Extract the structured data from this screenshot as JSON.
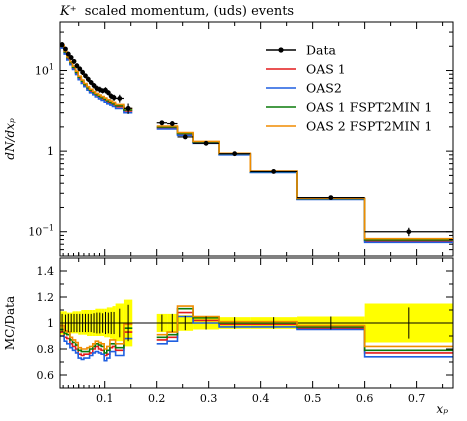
{
  "chart_data": [
    {
      "type": "line",
      "panel": "main",
      "title": "K⁺ scaled momentum, (uds) events",
      "title_italic_part": "K⁺",
      "title_rest": "scaled momentum, (uds) events",
      "ylabel": "dN/dxₚ",
      "log_y": true,
      "xlim": [
        0.014,
        0.77
      ],
      "ylim": [
        0.05,
        40
      ],
      "y_ticks": [
        {
          "v": 0.1,
          "base": "10",
          "exp": "−1"
        },
        {
          "v": 1,
          "base": "1",
          "exp": ""
        },
        {
          "v": 10,
          "base": "10",
          "exp": "1"
        }
      ],
      "bin_edges": [
        0.014,
        0.022,
        0.027,
        0.033,
        0.038,
        0.044,
        0.049,
        0.055,
        0.06,
        0.066,
        0.071,
        0.077,
        0.082,
        0.088,
        0.093,
        0.099,
        0.104,
        0.11,
        0.115,
        0.121,
        0.137,
        0.153,
        0.2,
        0.22,
        0.24,
        0.27,
        0.32,
        0.38,
        0.47,
        0.6,
        0.77
      ],
      "x_missing": [
        [
          0.153,
          0.2
        ]
      ],
      "data_points": [
        {
          "x": 0.018,
          "y": 21.0,
          "err": 1.5
        },
        {
          "x": 0.0245,
          "y": 18.5,
          "err": 1.2
        },
        {
          "x": 0.03,
          "y": 16.0,
          "err": 1.1
        },
        {
          "x": 0.0355,
          "y": 14.5,
          "err": 1.0
        },
        {
          "x": 0.041,
          "y": 13.0,
          "err": 0.9
        },
        {
          "x": 0.0465,
          "y": 11.5,
          "err": 0.8
        },
        {
          "x": 0.052,
          "y": 10.5,
          "err": 0.7
        },
        {
          "x": 0.0575,
          "y": 9.5,
          "err": 0.7
        },
        {
          "x": 0.063,
          "y": 8.6,
          "err": 0.6
        },
        {
          "x": 0.0685,
          "y": 7.8,
          "err": 0.6
        },
        {
          "x": 0.074,
          "y": 7.1,
          "err": 0.5
        },
        {
          "x": 0.0795,
          "y": 6.5,
          "err": 0.5
        },
        {
          "x": 0.085,
          "y": 6.0,
          "err": 0.5
        },
        {
          "x": 0.0905,
          "y": 5.8,
          "err": 0.5
        },
        {
          "x": 0.096,
          "y": 5.6,
          "err": 0.4
        },
        {
          "x": 0.1015,
          "y": 5.7,
          "err": 0.5
        },
        {
          "x": 0.107,
          "y": 5.3,
          "err": 0.4
        },
        {
          "x": 0.1125,
          "y": 4.8,
          "err": 0.4
        },
        {
          "x": 0.118,
          "y": 4.6,
          "err": 0.4
        },
        {
          "x": 0.129,
          "y": 4.5,
          "err": 0.5
        },
        {
          "x": 0.145,
          "y": 3.4,
          "err": 0.5
        },
        {
          "x": 0.21,
          "y": 2.25,
          "err": 0.15
        },
        {
          "x": 0.23,
          "y": 2.2,
          "err": 0.15
        },
        {
          "x": 0.255,
          "y": 1.5,
          "err": 0.08
        },
        {
          "x": 0.295,
          "y": 1.25,
          "err": 0.06
        },
        {
          "x": 0.35,
          "y": 0.93,
          "err": 0.04
        },
        {
          "x": 0.425,
          "y": 0.56,
          "err": 0.025
        },
        {
          "x": 0.535,
          "y": 0.265,
          "err": 0.013
        },
        {
          "x": 0.685,
          "y": 0.1,
          "err": 0.012
        }
      ],
      "series": [
        {
          "name": "Data",
          "color": "#000000",
          "style": "points-with-errors"
        },
        {
          "name": "OAS 1",
          "color": "#e41a1c",
          "values": [
            19.5,
            16.5,
            14.0,
            12.2,
            10.7,
            9.2,
            8.0,
            7.1,
            6.5,
            5.9,
            5.5,
            5.2,
            4.9,
            4.65,
            4.45,
            4.25,
            4.05,
            3.9,
            3.75,
            3.55,
            3.15,
            null,
            1.95,
            1.95,
            1.62,
            1.28,
            0.92,
            0.555,
            0.255,
            0.077
          ]
        },
        {
          "name": "OAS2",
          "color": "#1f5fe0",
          "values": [
            19.0,
            16.0,
            13.5,
            11.8,
            10.3,
            8.9,
            7.7,
            6.9,
            6.3,
            5.7,
            5.3,
            5.0,
            4.7,
            4.45,
            4.25,
            4.05,
            3.87,
            3.72,
            3.58,
            3.38,
            3.0,
            null,
            1.88,
            1.88,
            1.57,
            1.25,
            0.9,
            0.545,
            0.252,
            0.074
          ]
        },
        {
          "name": "OAS 1 FSPT2MIN 1",
          "color": "#0a7a0a",
          "values": [
            20.0,
            17.0,
            14.5,
            12.6,
            11.0,
            9.5,
            8.3,
            7.4,
            6.7,
            6.1,
            5.7,
            5.35,
            5.05,
            4.8,
            4.6,
            4.4,
            4.2,
            4.03,
            3.88,
            3.66,
            3.25,
            null,
            2.0,
            2.0,
            1.66,
            1.3,
            0.93,
            0.56,
            0.258,
            0.079
          ]
        },
        {
          "name": "OAS 2 FSPT2MIN 1",
          "color": "#f08c00",
          "values": [
            20.5,
            17.4,
            14.8,
            12.9,
            11.3,
            9.8,
            8.5,
            7.6,
            6.9,
            6.3,
            5.85,
            5.5,
            5.2,
            4.95,
            4.75,
            4.55,
            4.35,
            4.17,
            4.02,
            3.8,
            3.38,
            null,
            2.05,
            2.05,
            1.7,
            1.32,
            0.94,
            0.565,
            0.26,
            0.082
          ]
        }
      ],
      "legend_placement": "top-right"
    },
    {
      "type": "line",
      "panel": "ratio",
      "ylabel": "MC/Data",
      "xlabel": "xₚ",
      "ylim": [
        0.5,
        1.5
      ],
      "y_ticks": [
        "0.6",
        "0.8",
        "1",
        "1.2",
        "1.4"
      ],
      "x_ticks": [
        "0.1",
        "0.2",
        "0.3",
        "0.4",
        "0.5",
        "0.6",
        "0.7"
      ],
      "x_tick_values": [
        0.1,
        0.2,
        0.3,
        0.4,
        0.5,
        0.6,
        0.7
      ],
      "band_color": "#ffff00",
      "band": [
        [
          0.91,
          1.09
        ],
        [
          0.91,
          1.09
        ],
        [
          0.92,
          1.08
        ],
        [
          0.92,
          1.08
        ],
        [
          0.92,
          1.09
        ],
        [
          0.92,
          1.09
        ],
        [
          0.91,
          1.09
        ],
        [
          0.91,
          1.1
        ],
        [
          0.91,
          1.1
        ],
        [
          0.9,
          1.1
        ],
        [
          0.9,
          1.1
        ],
        [
          0.9,
          1.1
        ],
        [
          0.9,
          1.11
        ],
        [
          0.9,
          1.11
        ],
        [
          0.9,
          1.11
        ],
        [
          0.89,
          1.11
        ],
        [
          0.89,
          1.12
        ],
        [
          0.88,
          1.12
        ],
        [
          0.87,
          1.13
        ],
        [
          0.86,
          1.15
        ],
        [
          0.82,
          1.18
        ],
        null,
        [
          0.93,
          1.07
        ],
        [
          0.93,
          1.07
        ],
        [
          0.94,
          1.06
        ],
        [
          0.95,
          1.05
        ],
        [
          0.955,
          1.045
        ],
        [
          0.955,
          1.045
        ],
        [
          0.95,
          1.05
        ],
        [
          0.85,
          1.15
        ]
      ],
      "series": [
        {
          "name": "OAS 1",
          "color": "#e41a1c",
          "values": [
            0.93,
            0.89,
            0.88,
            0.84,
            0.82,
            0.8,
            0.76,
            0.75,
            0.76,
            0.76,
            0.77,
            0.8,
            0.82,
            0.8,
            0.79,
            0.75,
            0.76,
            0.81,
            0.82,
            0.79,
            0.93,
            null,
            0.87,
            0.89,
            1.08,
            1.02,
            0.99,
            0.99,
            0.96,
            0.77
          ]
        },
        {
          "name": "OAS2",
          "color": "#1f5fe0",
          "values": [
            0.9,
            0.86,
            0.84,
            0.81,
            0.79,
            0.77,
            0.73,
            0.72,
            0.73,
            0.73,
            0.75,
            0.77,
            0.78,
            0.77,
            0.76,
            0.71,
            0.73,
            0.78,
            0.78,
            0.75,
            0.88,
            null,
            0.84,
            0.86,
            1.05,
            1.0,
            0.97,
            0.97,
            0.95,
            0.74
          ]
        },
        {
          "name": "OAS 1 FSPT2MIN 1",
          "color": "#0a7a0a",
          "values": [
            0.95,
            0.92,
            0.91,
            0.87,
            0.85,
            0.83,
            0.79,
            0.78,
            0.78,
            0.78,
            0.8,
            0.82,
            0.84,
            0.83,
            0.82,
            0.77,
            0.79,
            0.84,
            0.84,
            0.81,
            0.96,
            null,
            0.89,
            0.91,
            1.11,
            1.04,
            1.0,
            1.0,
            0.97,
            0.79
          ]
        },
        {
          "name": "OAS 2 FSPT2MIN 1",
          "color": "#f08c00",
          "values": [
            0.98,
            0.94,
            0.93,
            0.89,
            0.87,
            0.85,
            0.81,
            0.8,
            0.8,
            0.81,
            0.82,
            0.84,
            0.86,
            0.85,
            0.84,
            0.8,
            0.82,
            0.87,
            0.87,
            0.84,
            0.99,
            null,
            0.91,
            0.93,
            1.13,
            1.05,
            1.01,
            1.01,
            0.98,
            0.82
          ]
        }
      ],
      "data_errors": [
        0.07,
        0.065,
        0.07,
        0.07,
        0.07,
        0.07,
        0.07,
        0.07,
        0.07,
        0.07,
        0.07,
        0.075,
        0.08,
        0.08,
        0.075,
        0.085,
        0.08,
        0.085,
        0.085,
        0.11,
        0.14,
        null,
        0.065,
        0.07,
        0.055,
        0.05,
        0.045,
        0.045,
        0.05,
        0.12
      ]
    }
  ]
}
